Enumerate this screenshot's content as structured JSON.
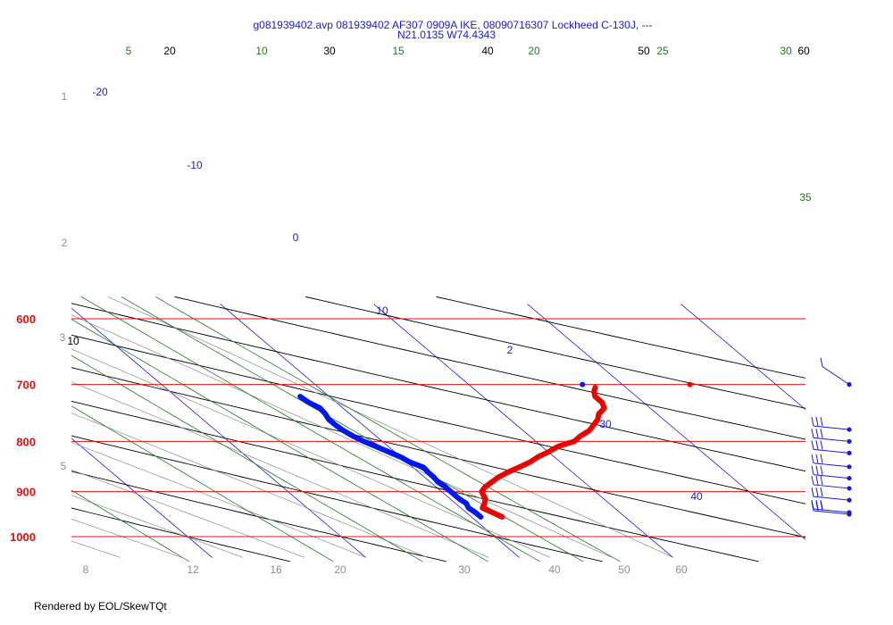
{
  "title_line1": "g081939402.avp 081939402 AF307 0909A IKE, 08090716307 Lockheed C-130J, ---",
  "title_line2": "N21.0135 W74.4343",
  "footer": "Rendered by EOL/SkewTQt",
  "colors": {
    "isobar": "#e01010",
    "isotherm": "#1a1ad8",
    "dry_adiabat": "#000000",
    "mixing_ratio": "#1c7a1c",
    "moist_adiabat": "#8c8c8c",
    "temperature": "#ee0000",
    "dewpoint": "#0018ee"
  },
  "chart_data": {
    "type": "line",
    "chart_kind": "skew-T log-P diagram",
    "y_axis": {
      "quantity": "pressure",
      "scale": "log",
      "range": [
        600,
        1050
      ],
      "tick_labels": [
        "600",
        "700",
        "800",
        "900",
        "1000"
      ]
    },
    "x_axis": {
      "quantity": "temperature (skewed)"
    },
    "isotherm_labels": [
      "-20",
      "-10",
      "0",
      "10",
      "2",
      "30",
      "40"
    ],
    "dry_adiabat_labels": [
      "20",
      "30",
      "40",
      "50",
      "60",
      "10"
    ],
    "mixing_ratio_labels": [
      "5",
      "10",
      "15",
      "20",
      "25",
      "30",
      "35"
    ],
    "moist_adiabat_labels": [
      "8",
      "12",
      "16",
      "20",
      "30",
      "40",
      "50",
      "60"
    ],
    "height_labels": [
      "1",
      "2",
      "3",
      "5"
    ],
    "series": [
      {
        "key": "temperature",
        "points": [
          [
            955,
            32
          ],
          [
            948,
            31.8
          ],
          [
            935,
            31.4
          ],
          [
            925,
            31.9
          ],
          [
            915,
            32.3
          ],
          [
            900,
            32.6
          ],
          [
            890,
            33.2
          ],
          [
            880,
            34.0
          ],
          [
            870,
            34.8
          ],
          [
            860,
            35.8
          ],
          [
            850,
            36.9
          ],
          [
            840,
            38.0
          ],
          [
            830,
            38.9
          ],
          [
            820,
            40.0
          ],
          [
            810,
            41.0
          ],
          [
            805,
            41.7
          ],
          [
            800,
            42.5
          ],
          [
            790,
            43.3
          ],
          [
            780,
            44.3
          ],
          [
            770,
            45.0
          ],
          [
            760,
            45.7
          ],
          [
            750,
            46.2
          ],
          [
            740,
            47.0
          ],
          [
            730,
            47.3
          ],
          [
            720,
            47.3
          ],
          [
            712,
            47.6
          ],
          [
            705,
            48.0
          ]
        ]
      },
      {
        "key": "dewpoint",
        "points": [
          [
            955,
            30.6
          ],
          [
            945,
            30.6
          ],
          [
            935,
            30.5
          ],
          [
            925,
            30.7
          ],
          [
            915,
            30.6
          ],
          [
            900,
            30.6
          ],
          [
            890,
            30.6
          ],
          [
            880,
            30.5
          ],
          [
            870,
            30.6
          ],
          [
            860,
            30.6
          ],
          [
            850,
            30.7
          ],
          [
            840,
            30.2
          ],
          [
            830,
            30.0
          ],
          [
            820,
            29.6
          ],
          [
            810,
            29.2
          ],
          [
            800,
            28.8
          ],
          [
            790,
            28.5
          ],
          [
            780,
            28.3
          ],
          [
            770,
            28.2
          ],
          [
            760,
            28.2
          ],
          [
            750,
            28.4
          ],
          [
            740,
            28.5
          ],
          [
            730,
            28.2
          ],
          [
            720,
            28.1
          ]
        ]
      }
    ],
    "surface_marks": [
      {
        "key": "temperature",
        "p": 700,
        "t": 54.4
      },
      {
        "key": "dewpoint",
        "p": 700,
        "t": 47.4
      }
    ],
    "wind_barb_levels_hpa": [
      700,
      778,
      800,
      822,
      849,
      872,
      893,
      918,
      945,
      949
    ]
  }
}
